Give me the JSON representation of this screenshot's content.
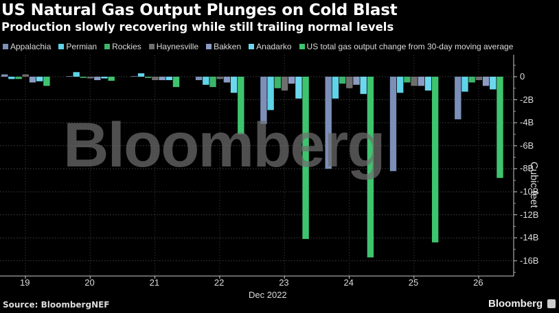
{
  "header": {
    "title": "US Natural Gas Output Plunges on Cold Blast",
    "subtitle": "Production slowly recovering while still trailing normal levels"
  },
  "legend": [
    {
      "label": "Appalachia",
      "color": "#7b8fb8"
    },
    {
      "label": "Permian",
      "color": "#5fd3e8"
    },
    {
      "label": "Rockies",
      "color": "#3cb56a"
    },
    {
      "label": "Haynesville",
      "color": "#6e6e6e"
    },
    {
      "label": "Bakken",
      "color": "#8a9cc4"
    },
    {
      "label": "Anadarko",
      "color": "#6cd8ee"
    },
    {
      "label": "US total gas output change from 30-day moving average",
      "color": "#3ec46e"
    }
  ],
  "axis": {
    "y_label": "Cubic feet",
    "y_ticks": [
      "0",
      "-2B",
      "-4B",
      "-6B",
      "-8B",
      "-10B",
      "-12B",
      "-14B",
      "-16B"
    ],
    "x_ticks": [
      "19",
      "20",
      "21",
      "22",
      "23",
      "24",
      "25",
      "26"
    ],
    "x_sublabel": "Dec 2022"
  },
  "watermark": "Bloomberg",
  "footer": {
    "source": "Source: BloombergNEF",
    "brand": "Bloomberg"
  },
  "chart_data": {
    "type": "bar",
    "title": "US Natural Gas Output Plunges on Cold Blast",
    "subtitle": "Production slowly recovering while still trailing normal levels",
    "xlabel": "Dec 2022",
    "ylabel": "Cubic feet",
    "ylim": [
      -17,
      1.5
    ],
    "y_unit": "billion cubic feet",
    "categories": [
      "19",
      "20",
      "21",
      "22",
      "23",
      "24",
      "25",
      "26"
    ],
    "legend_position": "top",
    "grid": true,
    "series": [
      {
        "name": "Appalachia",
        "color": "#7b8fb8",
        "values": [
          0.2,
          0.05,
          0.05,
          -0.3,
          -4.1,
          -8.0,
          -8.2,
          -3.7
        ]
      },
      {
        "name": "Permian",
        "color": "#5fd3e8",
        "values": [
          -0.2,
          0.4,
          0.3,
          -0.7,
          -2.9,
          -1.9,
          -1.4,
          -1.3
        ]
      },
      {
        "name": "Rockies",
        "color": "#3cb56a",
        "values": [
          -0.2,
          -0.1,
          -0.1,
          -0.9,
          -1.0,
          -0.6,
          -0.5,
          -0.5
        ]
      },
      {
        "name": "Haynesville",
        "color": "#6e6e6e",
        "values": [
          0.2,
          -0.15,
          -0.3,
          -0.2,
          -1.2,
          -1.0,
          -0.8,
          -0.3
        ]
      },
      {
        "name": "Bakken",
        "color": "#8a9cc4",
        "values": [
          -0.5,
          -0.3,
          -0.3,
          -0.5,
          -0.6,
          -0.7,
          -0.8,
          -0.8
        ]
      },
      {
        "name": "Anadarko",
        "color": "#6cd8ee",
        "values": [
          -0.4,
          -0.15,
          -0.3,
          -1.4,
          -1.9,
          -1.5,
          -1.2,
          -1.1
        ]
      },
      {
        "name": "US total gas output change from 30-day moving average",
        "color": "#3ec46e",
        "values": [
          -0.8,
          -0.35,
          -0.9,
          -5.0,
          -14.1,
          -15.7,
          -14.4,
          -8.8
        ]
      }
    ]
  }
}
